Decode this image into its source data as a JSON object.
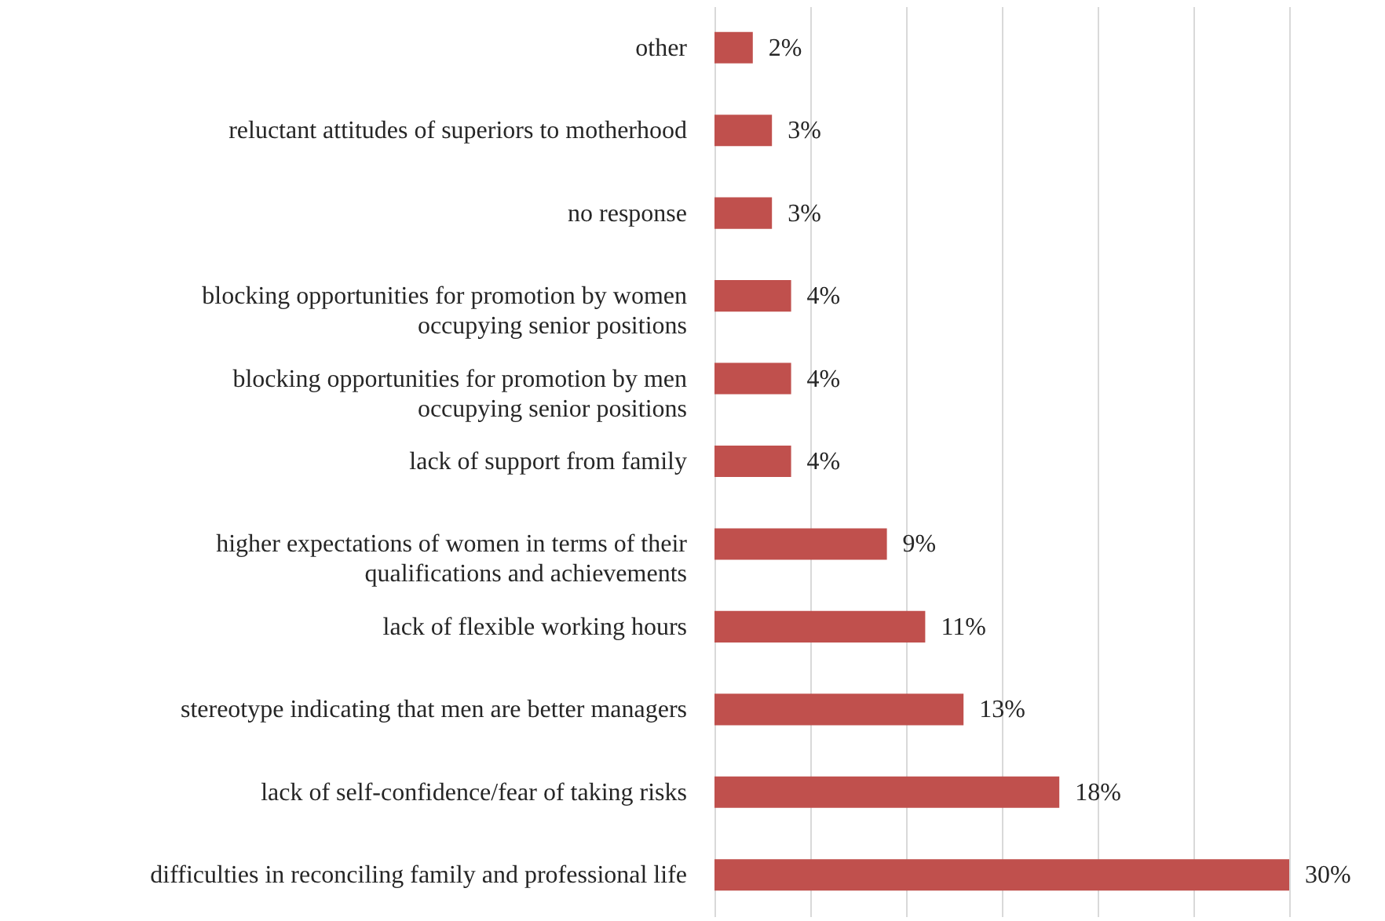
{
  "chart_data": {
    "type": "bar",
    "orientation": "horizontal",
    "categories": [
      "other",
      "reluctant attitudes of superiors to motherhood",
      "no response",
      "blocking opportunities for promotion by women\noccupying senior positions",
      "blocking opportunities for promotion by men\noccupying senior positions",
      "lack of support from family",
      "higher expectations of women in terms of their\nqualifications and achievements",
      "lack of flexible working hours",
      "stereotype indicating that men are better managers",
      "lack of self-confidence/fear of taking risks",
      "difficulties in reconciling family and professional life"
    ],
    "values": [
      2,
      3,
      3,
      4,
      4,
      4,
      9,
      11,
      13,
      18,
      30
    ],
    "color": "#c0504d",
    "data_labels": true,
    "value_labels": [
      "2%",
      "3%",
      "3%",
      "4%",
      "4%",
      "4%",
      "9%",
      "11%",
      "13%",
      "18%",
      "30%"
    ],
    "xlim": [
      0,
      35
    ],
    "xticks": [
      {
        "value": 0,
        "label": null
      },
      {
        "value": 5,
        "label": null
      },
      {
        "value": 10,
        "label": null
      },
      {
        "value": 15,
        "label": null
      },
      {
        "value": 20,
        "label": null
      },
      {
        "value": 25,
        "label": null
      },
      {
        "value": 30,
        "label": null
      },
      {
        "value": 35,
        "label": null
      }
    ],
    "grid": "x",
    "tick_labels": "y"
  }
}
